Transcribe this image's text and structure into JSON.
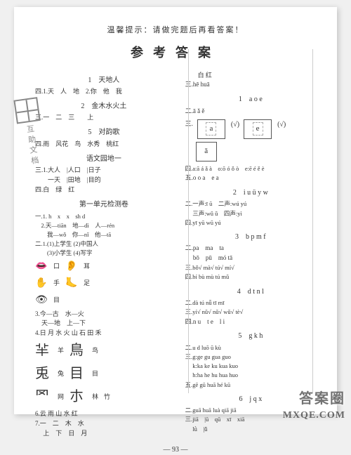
{
  "hint": "温馨提示：请做完题后再看答案！",
  "title": "参考答案",
  "left": {
    "s1_title": "1　天地人",
    "s1_l1": "四.1.天　人　地　2.你　他　我",
    "s2_title": "2　金木水火土",
    "s2_l1": "三.一　二　三　　上",
    "s3_title": "5　对韵歌",
    "s3_l1": "四.雨　风花　鸟　水秀　桃红",
    "s4_title": "语文园地一",
    "s4_l1": "三.1.大人　|人口　|日子",
    "s4_l2": "　　一天　|田地　|目的",
    "s4_l3": "四.白　绿　红",
    "s5_title": "第一单元检测卷",
    "s5_l1": "一.1. h　x　x　sh d",
    "s5_l2": "　2.天—tiān　地—dì　人—rén",
    "s5_l3": "　　我—wǒ　你—nǐ　他—tā",
    "s5_l4": "二.1.(1)上学生 (2)中国人",
    "s5_l5": "　　(3)小学生 (4)写字",
    "p_mouth": "口",
    "p_ear": "耳",
    "p_hand": "手",
    "p_foot": "足",
    "p_eye": "目",
    "s5_l6": "3.今—古　水—火",
    "s5_l7": "　天—地　上—下",
    "s5_l8": "4.日 月 水 火 山 石 田 禾",
    "p_sheep": "羊",
    "p_bird": "鸟",
    "p_rabbit": "兔",
    "p_mu": "目",
    "p_net": "网",
    "p_forest": "林",
    "p_bamboo": "竹",
    "s5_l9": "6.云 雨 山 水 红",
    "s5_l10": "7.一　二　木　水",
    "s5_l11": "　 上　下　日　月"
  },
  "right": {
    "r1_l1": "　　白 红",
    "r1_l2": "三.hē huā",
    "r2_title": "1　a o e",
    "r2_l1": "二.ā ǎ ě",
    "vowels": {
      "a": "a",
      "e": "e",
      "aq": "ǎ",
      "check": "(√)"
    },
    "r2_l2": "四.a:ā á ǎ à　o:ō ó ǒ ò　e:ē é ě è",
    "r2_l3": "五.o o a　e a",
    "r3_title": "2　i u ü y w",
    "r3_l1": "二.一声:ī ū　二声:wú yú",
    "r3_l2": "　 三声:wǔ ǔ　四声:yì",
    "r3_l3": "四.yī yū wū yú",
    "r4_title": "3　b p m f",
    "r4_l1": "二.pa　ma　ta",
    "r4_l2": "　 bō　pū　mó tā",
    "r4_l3": "三.bǒ√ mà√ tú√ mí√",
    "r4_l4": "四.bí bù mù tú mǔ",
    "r5_title": "4　d t n l",
    "r5_l1": "二.dà tú nǚ tī mī",
    "r5_l2": "三.yí√ nǔ√ nǔ√ wǔ√ tè√",
    "r5_l3": "四.n u　t e　l i",
    "r6_title": "5　g k h",
    "r6_l1": "二.u d luō ū kù",
    "r6_l2": "三.g:ge gu gua guo",
    "r6_l3": "　 k:ka ke ku kua kuo",
    "r6_l4": "　 h:ha he hu hua huo",
    "r6_l5": "五.gē gū huā hé kū",
    "r7_title": "6　j q x",
    "r7_l1": "二.guā huā luà qiā jiā",
    "r7_l2": "三.jiā　|ū　qū　xī　xiā",
    "r7_l3": "　 lǜ　|ǖ"
  },
  "page_num": "— 93 —",
  "watermark1": "答案圈",
  "watermark2": "MXQE.COM",
  "stamp": "互助文档"
}
